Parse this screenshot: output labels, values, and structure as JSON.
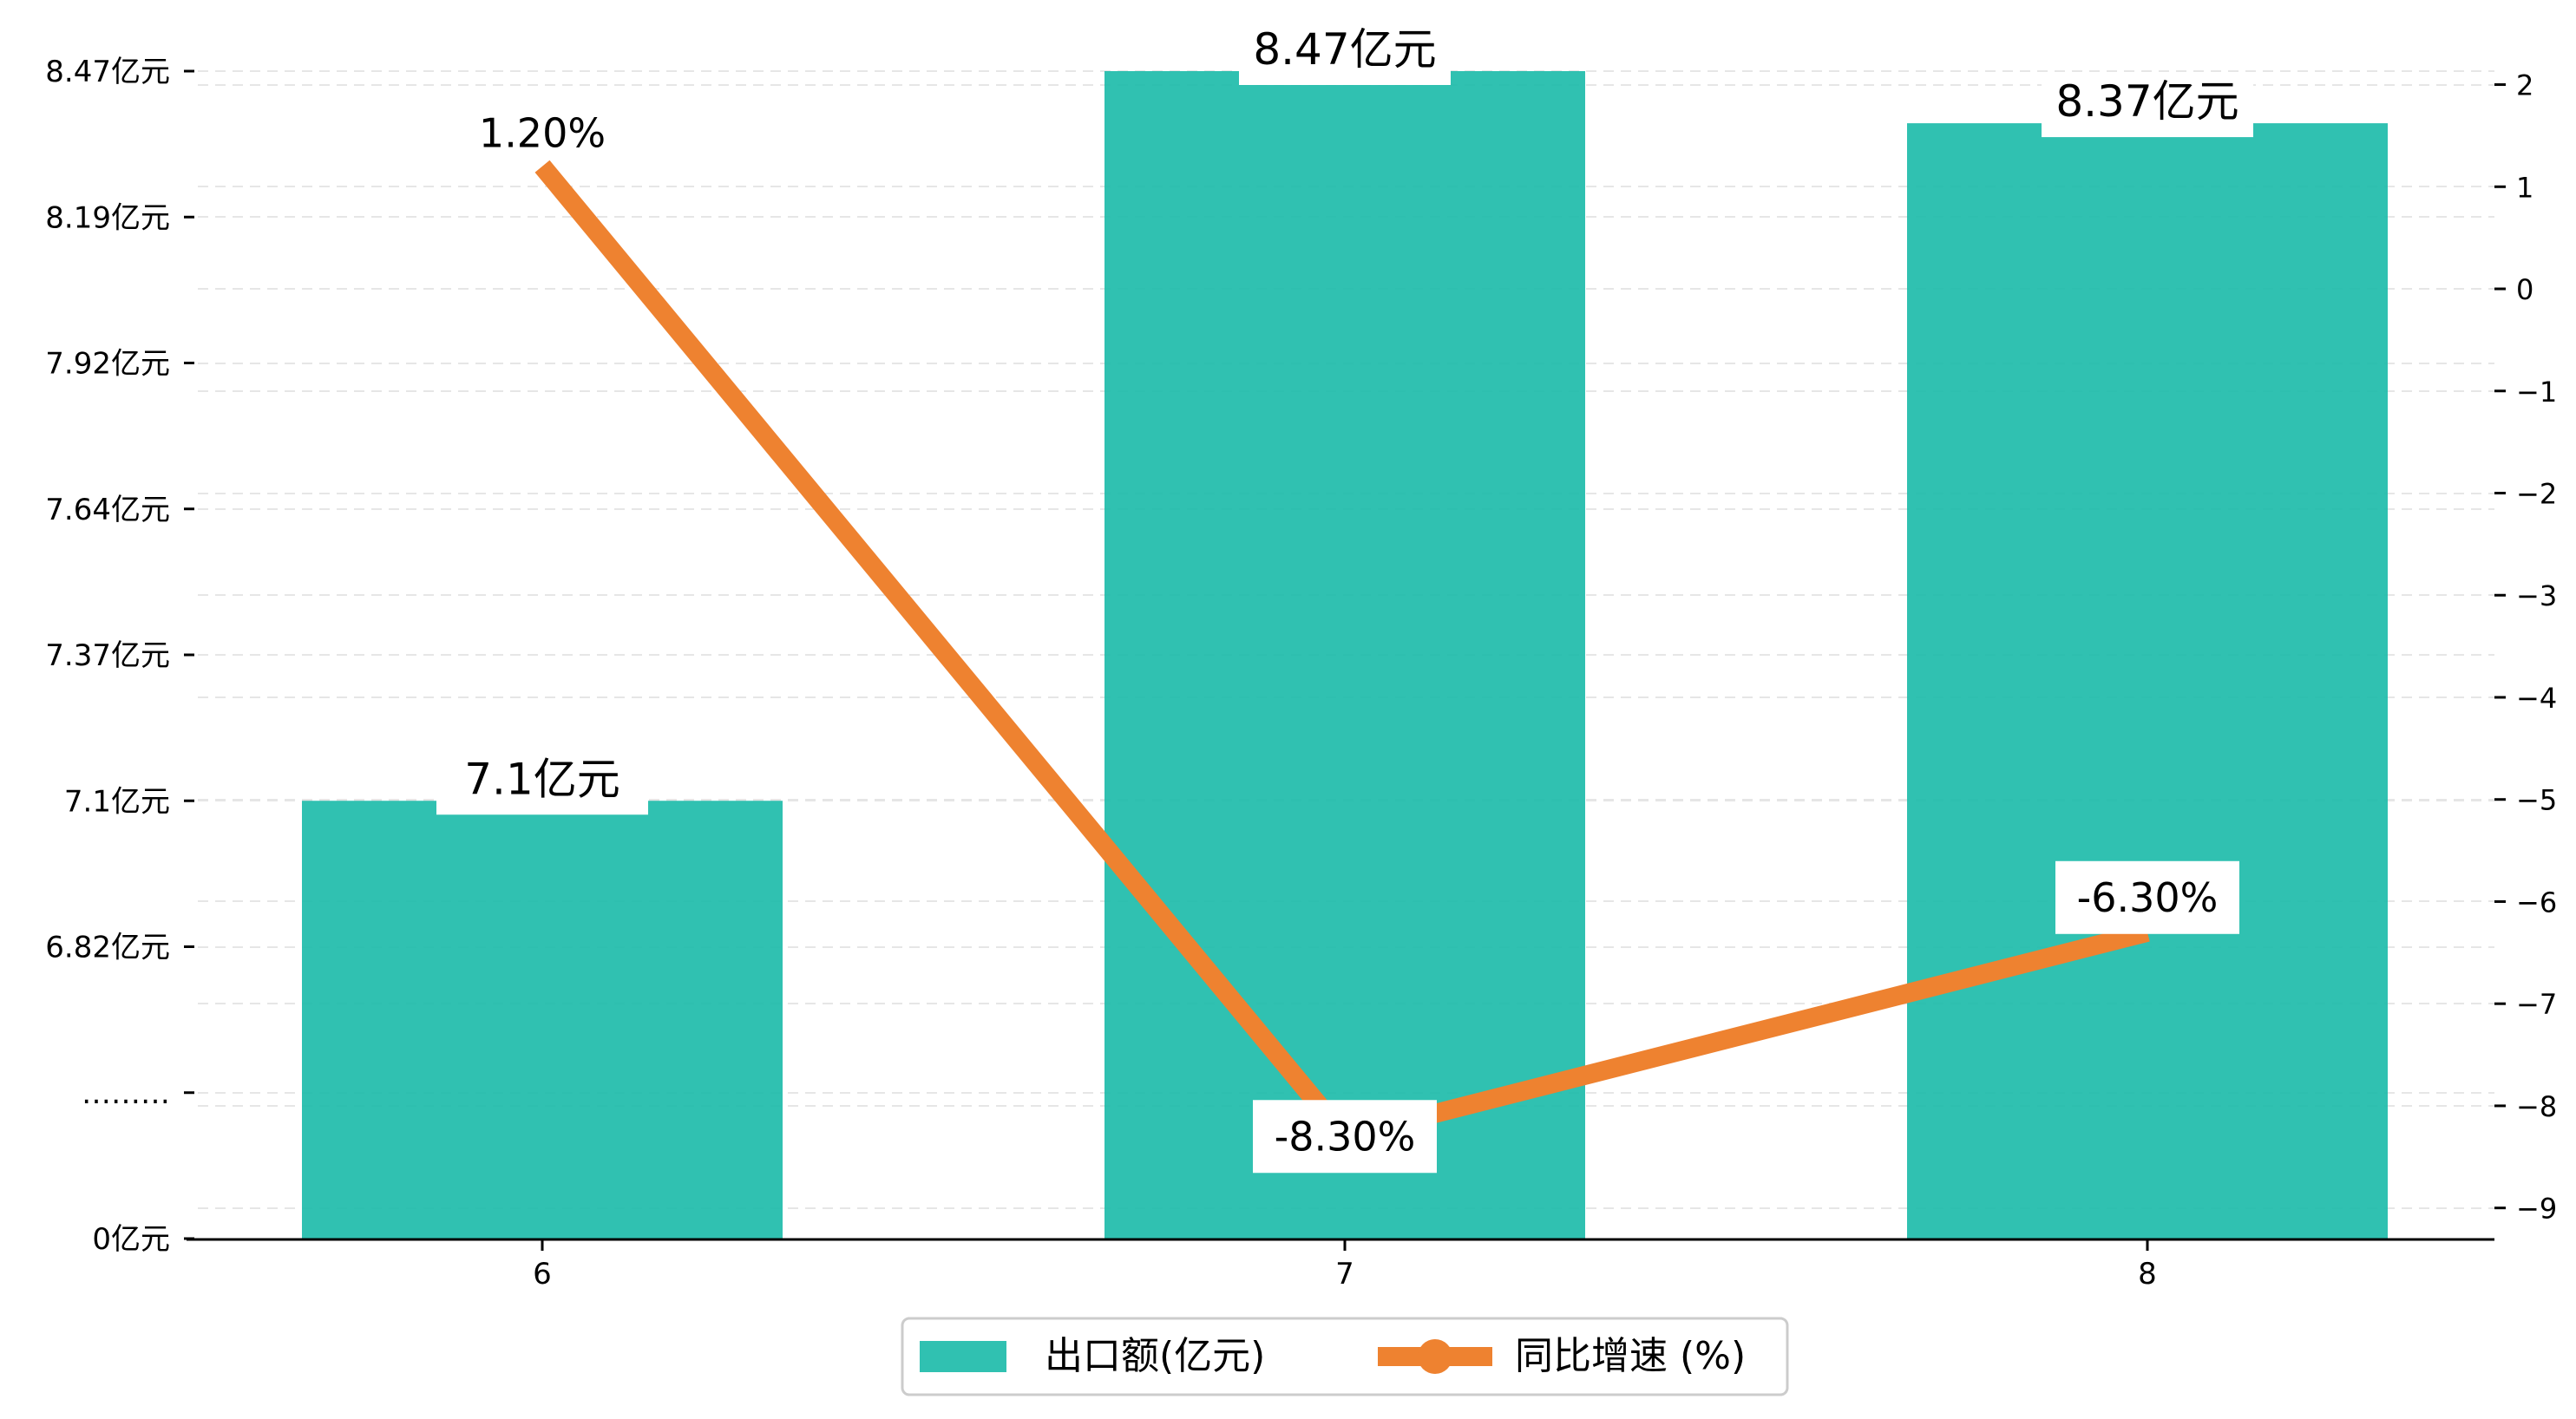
{
  "chart_data": {
    "type": "bar",
    "categories": [
      "6",
      "7",
      "8"
    ],
    "series": [
      {
        "name": "出口额(亿元)",
        "type": "bar",
        "axis": "left",
        "values": [
          7.1,
          8.47,
          8.37
        ],
        "labels": [
          "7.1亿元",
          "8.47亿元",
          "8.37亿元"
        ],
        "color": "#1ABAA8"
      },
      {
        "name": "同比增速 (%)",
        "type": "line",
        "axis": "right",
        "values": [
          1.2,
          -8.3,
          -6.3
        ],
        "labels": [
          "1.20%",
          "-8.30%",
          "-6.30%"
        ],
        "color": "#EE8230"
      }
    ],
    "left_axis": {
      "ticks": [
        0,
        6.55,
        6.82,
        7.1,
        7.37,
        7.64,
        7.92,
        8.19,
        8.47
      ],
      "tick_labels": [
        "0亿元",
        "………",
        "6.82亿元",
        "7.1亿元",
        "7.37亿元",
        "7.64亿元",
        "7.92亿元",
        "8.19亿元",
        "8.47亿元"
      ],
      "axis_break": true
    },
    "right_axis": {
      "ylim": [
        -9.3,
        2.2
      ],
      "ticks": [
        -9,
        -8,
        -7,
        -6,
        -5,
        -4,
        -3,
        -2,
        -1,
        0,
        1,
        2
      ],
      "tick_labels": [
        "−9",
        "−8",
        "−7",
        "−6",
        "−5",
        "−4",
        "−3",
        "−2",
        "−1",
        "0",
        "1",
        "2"
      ]
    },
    "grid": true,
    "grid_style": "dashed horizontal",
    "legend_position": "bottom-center"
  }
}
